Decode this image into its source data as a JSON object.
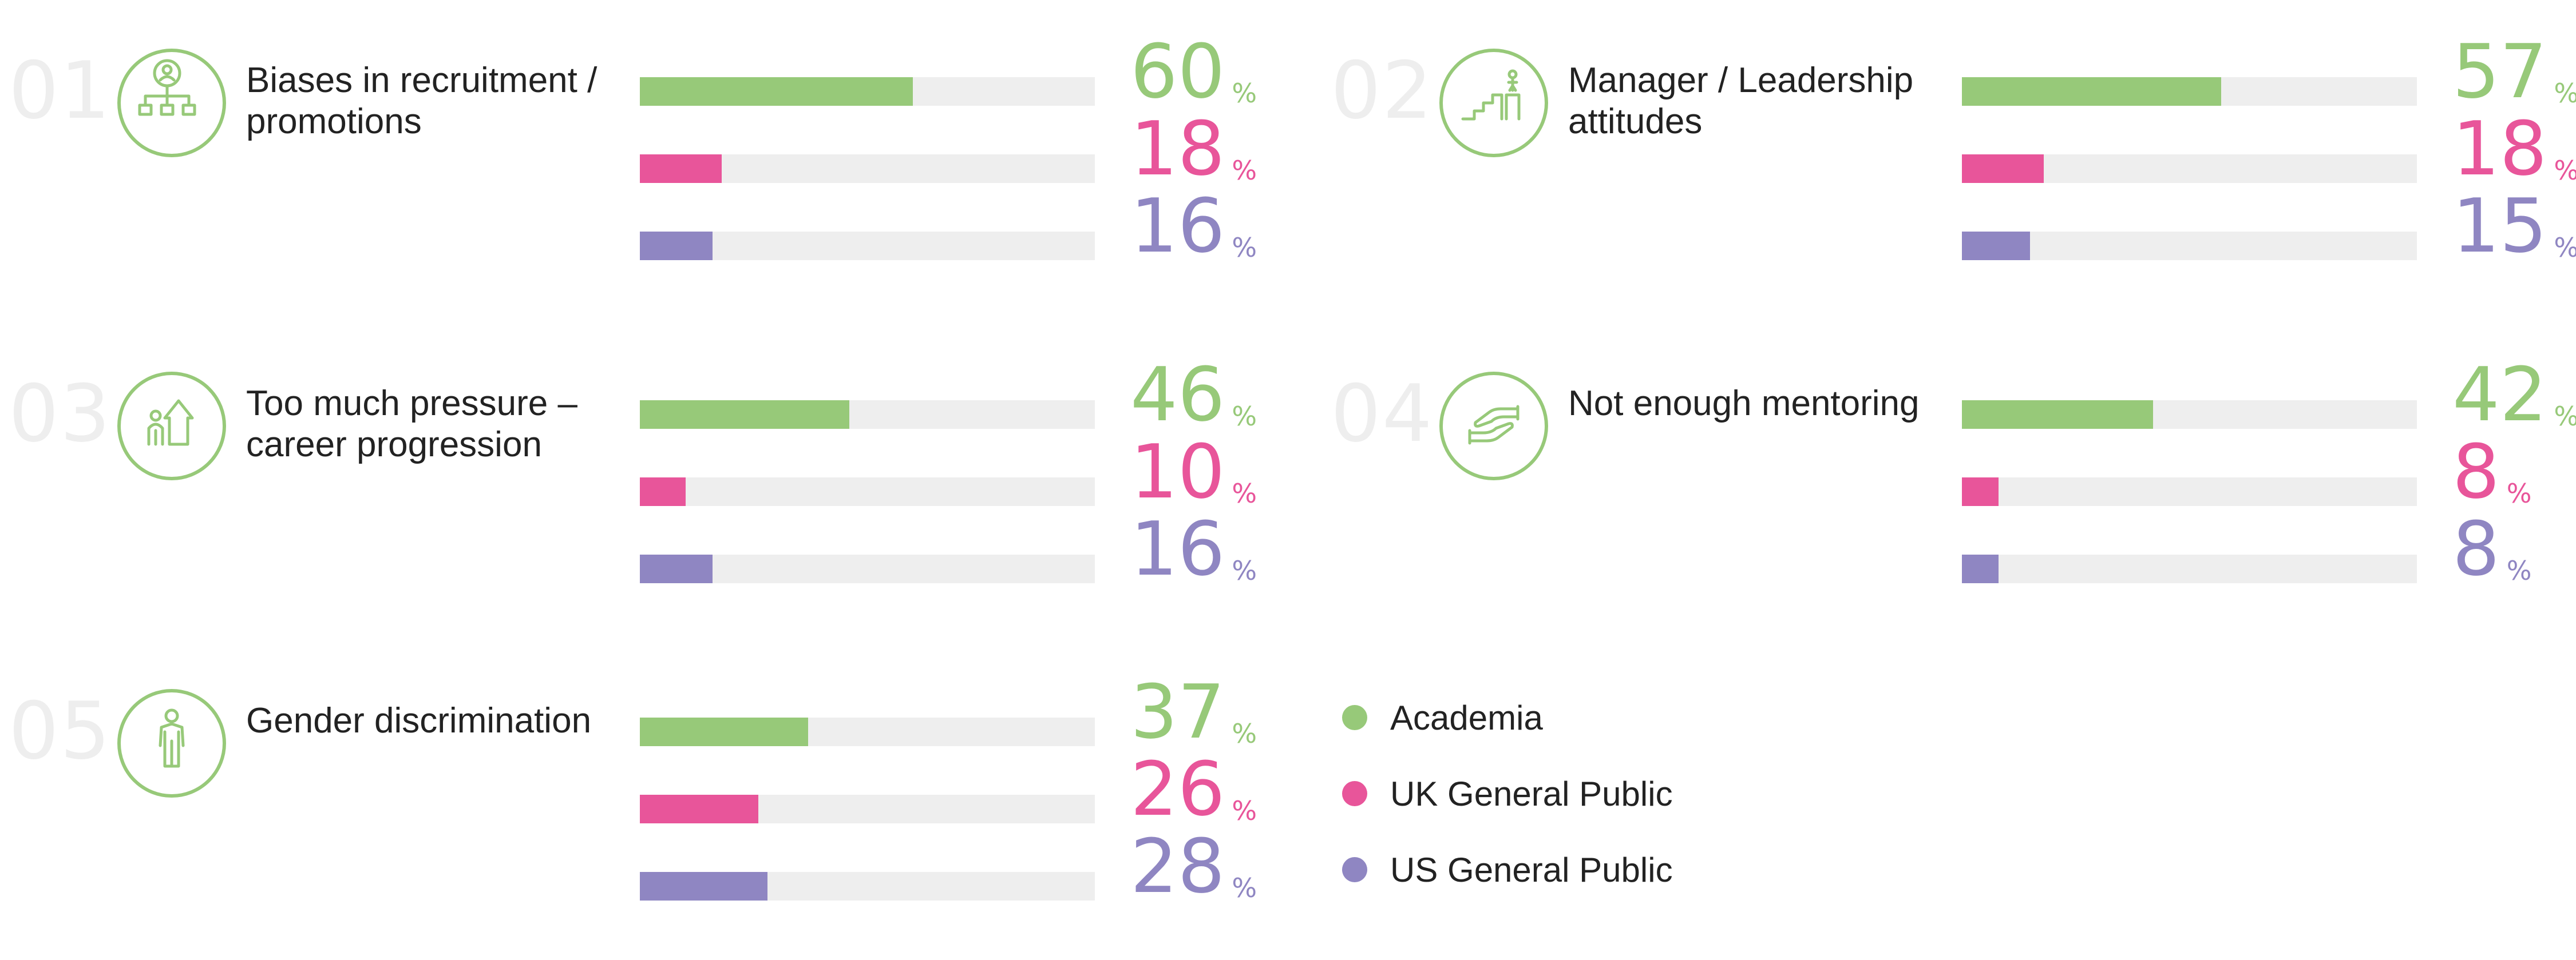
{
  "colors": {
    "academia": "#97c979",
    "uk": "#e8559a",
    "us": "#8f86c2",
    "track": "#eeeeee",
    "icon": "#97c979"
  },
  "legend": [
    {
      "label": "Academia",
      "color": "#97c979"
    },
    {
      "label": "UK General Public",
      "color": "#e8559a"
    },
    {
      "label": "US General Public",
      "color": "#8f86c2"
    }
  ],
  "chart_data": {
    "type": "bar",
    "orientation": "horizontal",
    "unit": "%",
    "xlim": [
      0,
      100
    ],
    "legend_position": "bottom-right",
    "grid": false,
    "series_names": [
      "Academia",
      "UK General Public",
      "US General Public"
    ],
    "groups": [
      {
        "number": "01",
        "label": "Biases in recruitment / promotions",
        "icon": "org-chart-icon",
        "values": [
          60,
          18,
          16
        ]
      },
      {
        "number": "02",
        "label": "Manager / Leadership attitudes",
        "icon": "stairs-podium-icon",
        "values": [
          57,
          18,
          15
        ]
      },
      {
        "number": "03",
        "label": "Too much pressure – career progression",
        "icon": "person-growth-arrow-icon",
        "values": [
          46,
          10,
          16
        ]
      },
      {
        "number": "04",
        "label": "Not enough mentoring",
        "icon": "helping-hands-icon",
        "values": [
          42,
          8,
          8
        ]
      },
      {
        "number": "05",
        "label": "Gender discrimination",
        "icon": "person-icon",
        "values": [
          37,
          26,
          28
        ]
      }
    ]
  }
}
